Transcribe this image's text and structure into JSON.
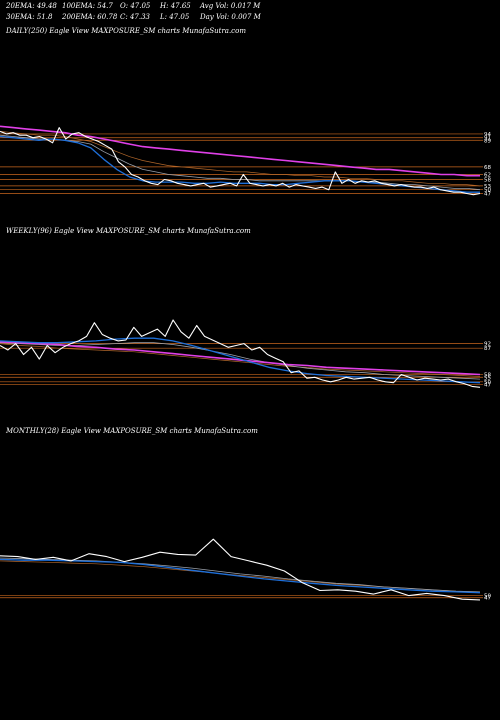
{
  "header": {
    "row1": [
      {
        "label": "20EMA: 49.48"
      },
      {
        "label": "100EMA: 54.7"
      },
      {
        "label": "O: 47.05"
      },
      {
        "label": "H: 47.65"
      },
      {
        "label": "Avg Vol: 0.017 M"
      }
    ],
    "row2": [
      {
        "label": "30EMA: 51.8"
      },
      {
        "label": "200EMA: 60.78"
      },
      {
        "label": "C: 47.33"
      },
      {
        "label": "L: 47.05"
      },
      {
        "label": "Day Vol: 0.007 M"
      }
    ]
  },
  "colors": {
    "background": "#000000",
    "price": "#ffffff",
    "ema_fast": "#1e6fd9",
    "ema_mid": "#9aa0aa",
    "ema_slow": "#e040e8",
    "ema_brown": "#b0662a",
    "hline": "#c8661e"
  },
  "chart_data": [
    {
      "type": "line",
      "title": "DAILY(250) Eagle   View  MAXPOSURE_SM charts MunafaSutra.com",
      "ylim": [
        30,
        105
      ],
      "hlines": [
        94,
        91,
        89,
        68,
        62,
        58,
        53,
        50,
        47
      ],
      "tick_labels": [
        "94",
        "91",
        "89",
        "68",
        "62",
        "58",
        "53",
        "50",
        "47"
      ],
      "series": [
        {
          "role": "price",
          "values": [
            96,
            94,
            95,
            93,
            93,
            91,
            92,
            90,
            87,
            99,
            90,
            94,
            95,
            92,
            90,
            88,
            85,
            82,
            72,
            68,
            62,
            60,
            57,
            55,
            54,
            58,
            57,
            55,
            54,
            53,
            54,
            55,
            52,
            53,
            54,
            55,
            53,
            62,
            55,
            54,
            53,
            54,
            53,
            55,
            52,
            54,
            53,
            52,
            51,
            52,
            50,
            64,
            55,
            58,
            55,
            57,
            56,
            57,
            55,
            54,
            53,
            54,
            53,
            52,
            52,
            51,
            52,
            50,
            49,
            48,
            48,
            47,
            46,
            47
          ]
        },
        {
          "role": "ema_fast",
          "values": [
            92,
            91,
            90,
            89,
            90,
            89,
            87,
            83,
            74,
            66,
            60,
            57,
            56,
            56,
            56,
            55,
            55,
            56,
            55,
            55,
            55,
            54,
            54,
            55,
            56,
            57,
            57,
            57,
            56,
            55,
            54,
            53,
            52,
            51,
            50,
            49,
            48,
            48
          ]
        },
        {
          "role": "ema_mid",
          "values": [
            93,
            92,
            91,
            90,
            90,
            89,
            88,
            86,
            80,
            75,
            70,
            66,
            64,
            62,
            61,
            60,
            59,
            59,
            58,
            58,
            57,
            57,
            57,
            57,
            57,
            57,
            57,
            57,
            56,
            56,
            55,
            54,
            54,
            53,
            52,
            51,
            51,
            50
          ]
        },
        {
          "role": "ema_slow",
          "values": [
            100,
            99,
            98,
            97,
            96,
            95,
            93,
            92,
            90,
            88,
            86,
            84,
            83,
            82,
            81,
            80,
            79,
            78,
            77,
            76,
            75,
            74,
            73,
            72,
            71,
            70,
            69,
            68,
            67,
            66,
            66,
            65,
            64,
            63,
            62,
            62,
            61,
            61
          ]
        },
        {
          "role": "ema_brown",
          "values": [
            96,
            95,
            94,
            93,
            93,
            92,
            90,
            88,
            84,
            80,
            76,
            73,
            71,
            69,
            68,
            67,
            66,
            65,
            64,
            64,
            63,
            62,
            62,
            61,
            61,
            60,
            60,
            59,
            59,
            58,
            57,
            57,
            56,
            55,
            55,
            54,
            54,
            53
          ]
        }
      ]
    },
    {
      "type": "line",
      "title": "WEEKLY(96) Eagle   View  MAXPOSURE_SM charts MunafaSutra.com",
      "ylim": [
        30,
        140
      ],
      "hlines": [
        92,
        87,
        58,
        55,
        50,
        47
      ],
      "tick_labels": [
        "92",
        "87",
        "58",
        "55",
        "50",
        "47"
      ],
      "series": [
        {
          "role": "price",
          "values": [
            90,
            85,
            92,
            80,
            88,
            75,
            90,
            82,
            88,
            92,
            95,
            100,
            115,
            102,
            98,
            95,
            96,
            110,
            100,
            104,
            108,
            100,
            118,
            105,
            98,
            112,
            100,
            96,
            92,
            88,
            90,
            92,
            85,
            88,
            80,
            76,
            72,
            60,
            62,
            54,
            55,
            52,
            50,
            52,
            55,
            53,
            54,
            55,
            52,
            50,
            49,
            58,
            55,
            52,
            54,
            53,
            52,
            53,
            50,
            48,
            45,
            44
          ]
        },
        {
          "role": "ema_fast",
          "values": [
            95,
            94,
            93,
            93,
            94,
            95,
            97,
            98,
            98,
            95,
            90,
            84,
            78,
            72,
            66,
            62,
            59,
            57,
            56,
            55,
            54,
            53,
            52,
            51,
            50,
            49
          ]
        },
        {
          "role": "ema_mid",
          "values": [
            93,
            92,
            91,
            90,
            90,
            91,
            92,
            93,
            93,
            91,
            88,
            84,
            80,
            75,
            71,
            68,
            65,
            63,
            61,
            60,
            58,
            57,
            56,
            55,
            54,
            53
          ]
        },
        {
          "role": "ema_slow",
          "values": [
            94,
            93,
            92,
            91,
            89,
            88,
            86,
            85,
            83,
            81,
            79,
            77,
            75,
            73,
            71,
            69,
            68,
            66,
            65,
            64,
            63,
            62,
            61,
            60,
            59,
            58
          ]
        },
        {
          "role": "ema_brown",
          "values": [
            92,
            90,
            89,
            87,
            86,
            85,
            84,
            83,
            81,
            79,
            77,
            75,
            73,
            71,
            69,
            67,
            66,
            64,
            63,
            62,
            61,
            60,
            59,
            58,
            57,
            56
          ]
        }
      ]
    },
    {
      "type": "line",
      "title": "MONTHLY(28) Eagle   View  MAXPOSURE_SM charts MunafaSutra.com",
      "ylim": [
        30,
        210
      ],
      "hlines": [
        50,
        47
      ],
      "tick_labels": [
        "50",
        "47"
      ],
      "series": [
        {
          "role": "price",
          "values": [
            105,
            104,
            100,
            103,
            98,
            108,
            104,
            97,
            103,
            110,
            107,
            106,
            128,
            104,
            98,
            92,
            84,
            68,
            57,
            58,
            56,
            52,
            58,
            50,
            53,
            50,
            45,
            44
          ]
        },
        {
          "role": "ema_fast",
          "values": [
            100,
            99,
            99,
            98,
            97,
            96,
            93,
            89,
            85,
            81,
            77,
            73,
            70,
            67,
            64,
            62,
            60,
            58,
            56,
            55,
            54
          ]
        },
        {
          "role": "ema_mid",
          "values": [
            102,
            101,
            100,
            99,
            98,
            96,
            94,
            91,
            88,
            84,
            80,
            77,
            73,
            70,
            67,
            65,
            62,
            60,
            58,
            56,
            55
          ]
        },
        {
          "role": "ema_brown",
          "values": [
            98,
            97,
            96,
            95,
            94,
            92,
            90,
            87,
            84,
            81,
            78,
            75,
            72,
            69,
            66,
            64,
            62,
            60,
            58,
            56,
            55
          ]
        }
      ]
    }
  ]
}
